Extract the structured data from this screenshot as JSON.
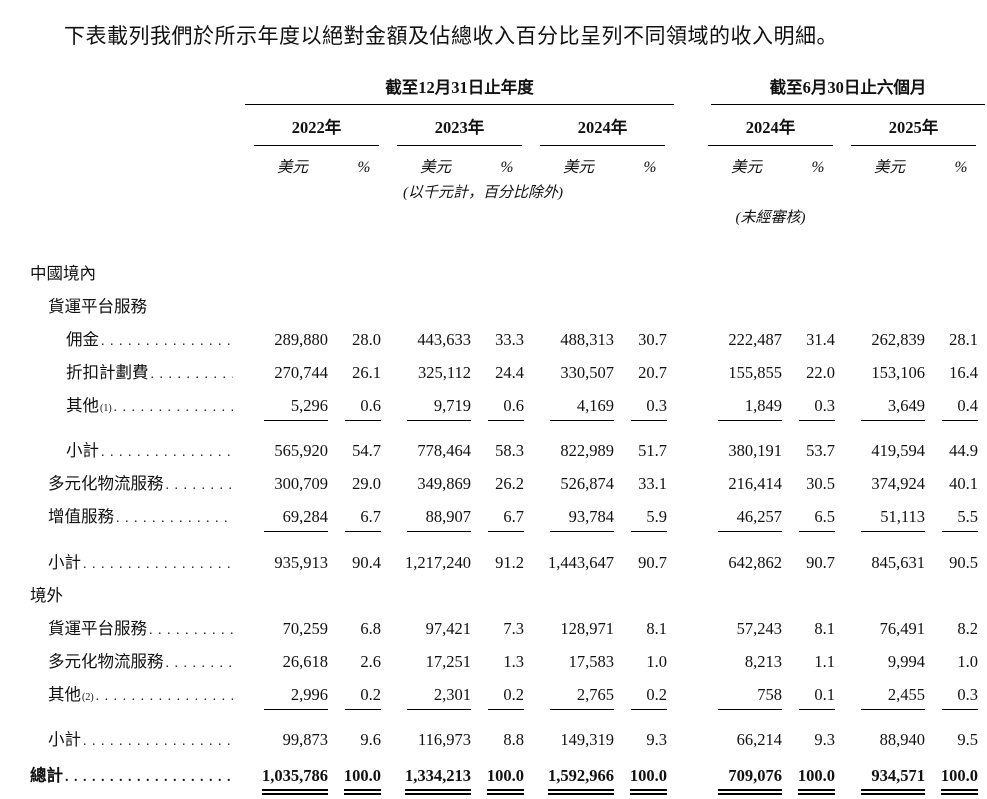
{
  "title": "下表載列我們於所示年度以絕對金額及佔總收入百分比呈列不同領域的收入明細。",
  "table": {
    "groups": [
      {
        "label": "截至12月31日止年度",
        "years": [
          "2022年",
          "2023年",
          "2024年"
        ]
      },
      {
        "label": "截至6月30日止六個月",
        "years": [
          "2024年",
          "2025年"
        ]
      }
    ],
    "unit_label": "美元",
    "pct_label": "%",
    "note_units": "(以千元計，百分比除外)",
    "note_unaudited": "(未經審核)",
    "rows": [
      {
        "label": "中國境內",
        "indent": 0,
        "type": "section"
      },
      {
        "label": "貨運平台服務",
        "indent": 1,
        "type": "section"
      },
      {
        "label": "佣金",
        "indent": 2,
        "type": "data",
        "values": [
          "289,880",
          "28.0",
          "443,633",
          "33.3",
          "488,313",
          "30.7",
          "222,487",
          "31.4",
          "262,839",
          "28.1"
        ]
      },
      {
        "label": "折扣計劃費",
        "indent": 2,
        "type": "data",
        "values": [
          "270,744",
          "26.1",
          "325,112",
          "24.4",
          "330,507",
          "20.7",
          "155,855",
          "22.0",
          "153,106",
          "16.4"
        ]
      },
      {
        "label": "其他",
        "sup": "(1)",
        "indent": 2,
        "type": "data",
        "rule_below": true,
        "values": [
          "5,296",
          "0.6",
          "9,719",
          "0.6",
          "4,169",
          "0.3",
          "1,849",
          "0.3",
          "3,649",
          "0.4"
        ]
      },
      {
        "label": "小計",
        "indent": 2,
        "type": "subtotal",
        "values": [
          "565,920",
          "54.7",
          "778,464",
          "58.3",
          "822,989",
          "51.7",
          "380,191",
          "53.7",
          "419,594",
          "44.9"
        ]
      },
      {
        "label": "多元化物流服務",
        "indent": 1,
        "type": "data",
        "values": [
          "300,709",
          "29.0",
          "349,869",
          "26.2",
          "526,874",
          "33.1",
          "216,414",
          "30.5",
          "374,924",
          "40.1"
        ]
      },
      {
        "label": "增值服務",
        "indent": 1,
        "type": "data",
        "rule_below": true,
        "values": [
          "69,284",
          "6.7",
          "88,907",
          "6.7",
          "93,784",
          "5.9",
          "46,257",
          "6.5",
          "51,113",
          "5.5"
        ]
      },
      {
        "label": "小計",
        "indent": 1,
        "type": "subtotal",
        "values": [
          "935,913",
          "90.4",
          "1,217,240",
          "91.2",
          "1,443,647",
          "90.7",
          "642,862",
          "90.7",
          "845,631",
          "90.5"
        ]
      },
      {
        "label": "境外",
        "indent": 0,
        "type": "section"
      },
      {
        "label": "貨運平台服務",
        "indent": 1,
        "type": "data",
        "values": [
          "70,259",
          "6.8",
          "97,421",
          "7.3",
          "128,971",
          "8.1",
          "57,243",
          "8.1",
          "76,491",
          "8.2"
        ]
      },
      {
        "label": "多元化物流服務",
        "indent": 1,
        "type": "data",
        "values": [
          "26,618",
          "2.6",
          "17,251",
          "1.3",
          "17,583",
          "1.0",
          "8,213",
          "1.1",
          "9,994",
          "1.0"
        ]
      },
      {
        "label": "其他",
        "sup": "(2)",
        "indent": 1,
        "type": "data",
        "rule_below": true,
        "values": [
          "2,996",
          "0.2",
          "2,301",
          "0.2",
          "2,765",
          "0.2",
          "758",
          "0.1",
          "2,455",
          "0.3"
        ]
      },
      {
        "label": "小計",
        "indent": 1,
        "type": "subtotal",
        "values": [
          "99,873",
          "9.6",
          "116,973",
          "8.8",
          "149,319",
          "9.3",
          "66,214",
          "9.3",
          "88,940",
          "9.5"
        ]
      },
      {
        "label": "總計",
        "indent": 0,
        "type": "total",
        "values": [
          "1,035,786",
          "100.0",
          "1,334,213",
          "100.0",
          "1,592,966",
          "100.0",
          "709,076",
          "100.0",
          "934,571",
          "100.0"
        ]
      }
    ]
  }
}
